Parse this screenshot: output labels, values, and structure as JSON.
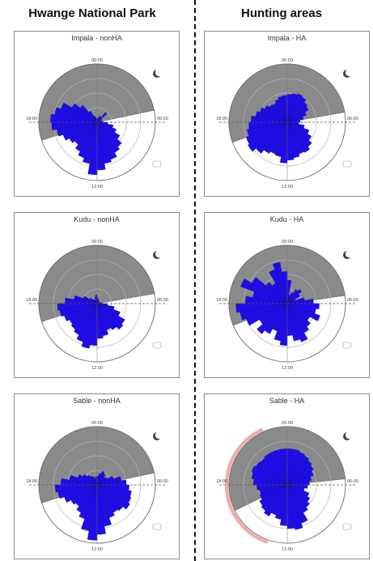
{
  "headers": {
    "left": "Hwange National Park",
    "right": "Hunting areas"
  },
  "chart_data": [
    {
      "type": "polar-bar",
      "title": "Impala - nonHA",
      "column": "left",
      "row": 0,
      "time_labels": {
        "top": "00:00",
        "right": "06:00",
        "bottom": "12:00",
        "left": "18:00"
      },
      "values": [
        0.05,
        0.08,
        0.12,
        0.1,
        0.22,
        0.1,
        0.05,
        0.08,
        0.1,
        0.18,
        0.28,
        0.35,
        0.45,
        0.55,
        0.6,
        0.68,
        0.72,
        0.82,
        0.9,
        0.72,
        0.65,
        0.58,
        0.5,
        0.55,
        0.62,
        0.7,
        0.78,
        0.8,
        0.74,
        0.66,
        0.5,
        0.38,
        0.22,
        0.12,
        0.08,
        0.06
      ],
      "night_sector_deg": [
        252,
        78
      ],
      "moon": true
    },
    {
      "type": "polar-bar",
      "title": "Impala - HA",
      "column": "right",
      "row": 0,
      "time_labels": {
        "top": "00:00",
        "right": "06:00",
        "bottom": "12:00",
        "left": "18:00"
      },
      "values": [
        0.48,
        0.5,
        0.52,
        0.5,
        0.45,
        0.42,
        0.35,
        0.28,
        0.22,
        0.2,
        0.3,
        0.4,
        0.48,
        0.55,
        0.6,
        0.58,
        0.62,
        0.65,
        0.7,
        0.6,
        0.58,
        0.62,
        0.7,
        0.78,
        0.75,
        0.7,
        0.66,
        0.62,
        0.55,
        0.5,
        0.45,
        0.4,
        0.38,
        0.42,
        0.45,
        0.46
      ],
      "night_sector_deg": [
        250,
        80
      ],
      "moon": true
    },
    {
      "type": "polar-bar",
      "title": "Kudu - nonHA",
      "column": "left",
      "row": 1,
      "time_labels": {
        "top": "00:00",
        "right": "06:00",
        "bottom": "12:00",
        "left": "18:00"
      },
      "values": [
        0.1,
        0.08,
        0.06,
        0.05,
        0.05,
        0.04,
        0.03,
        0.05,
        0.08,
        0.18,
        0.3,
        0.42,
        0.55,
        0.58,
        0.52,
        0.48,
        0.56,
        0.6,
        0.72,
        0.78,
        0.7,
        0.62,
        0.58,
        0.55,
        0.6,
        0.65,
        0.68,
        0.55,
        0.4,
        0.25,
        0.15,
        0.1,
        0.08,
        0.06,
        0.12,
        0.15
      ],
      "night_sector_deg": [
        252,
        80
      ],
      "moon": true
    },
    {
      "type": "polar-bar",
      "title": "Kudu - HA",
      "column": "right",
      "row": 1,
      "time_labels": {
        "top": "00:00",
        "right": "06:00",
        "bottom": "12:00",
        "left": "18:00"
      },
      "values": [
        0.4,
        0.15,
        0.2,
        0.28,
        0.32,
        0.25,
        0.15,
        0.3,
        0.45,
        0.55,
        0.5,
        0.6,
        0.45,
        0.52,
        0.58,
        0.7,
        0.65,
        0.55,
        0.72,
        0.65,
        0.5,
        0.6,
        0.68,
        0.55,
        0.75,
        0.82,
        0.88,
        0.72,
        0.6,
        0.85,
        0.7,
        0.48,
        0.4,
        0.62,
        0.72,
        0.55
      ],
      "night_sector_deg": [
        248,
        82
      ],
      "moon": true
    },
    {
      "type": "polar-bar",
      "title": "Sable - nonHA",
      "column": "left",
      "row": 2,
      "time_labels": {
        "top": "00:00",
        "right": "06:00",
        "bottom": "12:00",
        "left": "18:00"
      },
      "values": [
        0.15,
        0.2,
        0.25,
        0.22,
        0.18,
        0.2,
        0.3,
        0.42,
        0.5,
        0.55,
        0.6,
        0.62,
        0.65,
        0.58,
        0.55,
        0.6,
        0.72,
        0.85,
        0.95,
        0.8,
        0.62,
        0.55,
        0.48,
        0.52,
        0.6,
        0.68,
        0.72,
        0.62,
        0.48,
        0.35,
        0.28,
        0.22,
        0.18,
        0.15,
        0.12,
        0.14
      ],
      "night_sector_deg": [
        252,
        78
      ],
      "moon": true
    },
    {
      "type": "polar-bar",
      "title": "Sable - HA",
      "column": "right",
      "row": 2,
      "time_labels": {
        "top": "00:00",
        "right": "06:00",
        "bottom": "12:00",
        "left": "18:00"
      },
      "values": [
        0.62,
        0.62,
        0.6,
        0.58,
        0.55,
        0.52,
        0.48,
        0.42,
        0.38,
        0.35,
        0.3,
        0.4,
        0.45,
        0.5,
        0.55,
        0.7,
        0.78,
        0.75,
        0.7,
        0.6,
        0.55,
        0.62,
        0.58,
        0.55,
        0.5,
        0.48,
        0.52,
        0.58,
        0.62,
        0.65,
        0.62,
        0.6,
        0.62,
        0.62,
        0.62,
        0.62
      ],
      "night_sector_deg": [
        244,
        84
      ],
      "moon": true,
      "highlight_arc_deg": [
        200,
        335
      ]
    }
  ],
  "colors": {
    "bars": "#1f0de8",
    "bar_stroke": "#150a9a",
    "night": "#8a8a8a",
    "grid": "#b5b5b5",
    "highlight": "#f29a9a"
  }
}
